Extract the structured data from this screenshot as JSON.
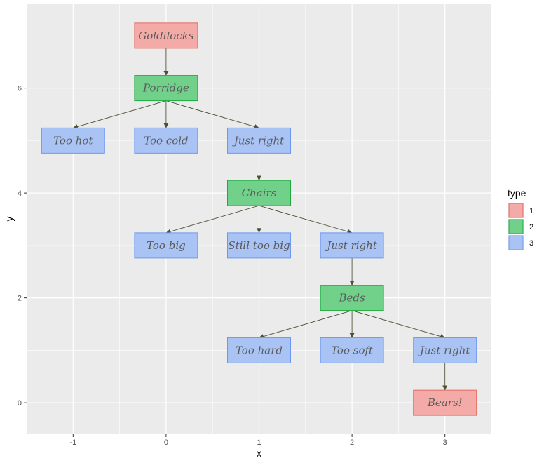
{
  "chart_data": {
    "type": "flowchart",
    "title": "",
    "xlabel": "x",
    "ylabel": "y",
    "xlim": [
      -1.5,
      3.5
    ],
    "ylim": [
      -0.6,
      7.6
    ],
    "x_ticks": [
      -1,
      0,
      1,
      2,
      3
    ],
    "y_ticks": [
      0,
      2,
      4,
      6
    ],
    "legend_title": "type",
    "legend": [
      {
        "label": "1",
        "fill": "#f4aaa6",
        "stroke": "#e26b63"
      },
      {
        "label": "2",
        "fill": "#71d18a",
        "stroke": "#1faa3f"
      },
      {
        "label": "3",
        "fill": "#a9c4f4",
        "stroke": "#6c98ef"
      }
    ],
    "nodes": [
      {
        "id": "n1",
        "label": "Goldilocks",
        "x": 0,
        "y": 7,
        "type": 1
      },
      {
        "id": "n2",
        "label": "Porridge",
        "x": 0,
        "y": 6,
        "type": 2
      },
      {
        "id": "n3",
        "label": "Too hot",
        "x": -1,
        "y": 5,
        "type": 3
      },
      {
        "id": "n4",
        "label": "Too cold",
        "x": 0,
        "y": 5,
        "type": 3
      },
      {
        "id": "n5",
        "label": "Just right",
        "x": 1,
        "y": 5,
        "type": 3
      },
      {
        "id": "n6",
        "label": "Chairs",
        "x": 1,
        "y": 4,
        "type": 2
      },
      {
        "id": "n7",
        "label": "Too big",
        "x": 0,
        "y": 3,
        "type": 3
      },
      {
        "id": "n8",
        "label": "Still too big",
        "x": 1,
        "y": 3,
        "type": 3
      },
      {
        "id": "n9",
        "label": "Just right",
        "x": 2,
        "y": 3,
        "type": 3
      },
      {
        "id": "n10",
        "label": "Beds",
        "x": 2,
        "y": 2,
        "type": 2
      },
      {
        "id": "n11",
        "label": "Too hard",
        "x": 1,
        "y": 1,
        "type": 3
      },
      {
        "id": "n12",
        "label": "Too soft",
        "x": 2,
        "y": 1,
        "type": 3
      },
      {
        "id": "n13",
        "label": "Just right",
        "x": 3,
        "y": 1,
        "type": 3
      },
      {
        "id": "n14",
        "label": "Bears!",
        "x": 3,
        "y": 0,
        "type": 1
      }
    ],
    "edges": [
      {
        "from": "n1",
        "to": "n2"
      },
      {
        "from": "n2",
        "to": "n3"
      },
      {
        "from": "n2",
        "to": "n4"
      },
      {
        "from": "n2",
        "to": "n5"
      },
      {
        "from": "n5",
        "to": "n6"
      },
      {
        "from": "n6",
        "to": "n7"
      },
      {
        "from": "n6",
        "to": "n8"
      },
      {
        "from": "n6",
        "to": "n9"
      },
      {
        "from": "n9",
        "to": "n10"
      },
      {
        "from": "n10",
        "to": "n11"
      },
      {
        "from": "n10",
        "to": "n12"
      },
      {
        "from": "n10",
        "to": "n13"
      },
      {
        "from": "n13",
        "to": "n14"
      }
    ],
    "colors": {
      "panel_background": "#ebebeb",
      "grid_major": "#ffffff",
      "arrow": "#4b5135"
    }
  }
}
